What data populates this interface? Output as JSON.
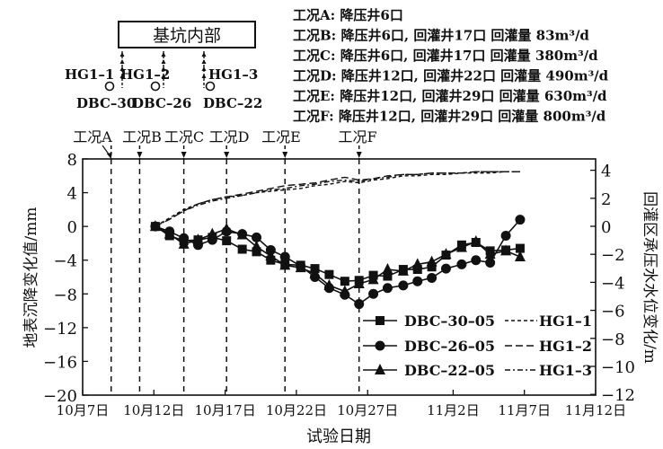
{
  "diagram": {
    "box_label": "基坑内部",
    "wells": [
      {
        "hg": "HG1-1",
        "dbc": "DBC-30"
      },
      {
        "hg": "HG1-2",
        "dbc": "DBC-26"
      },
      {
        "hg": "HG1-3",
        "dbc": "DBC-22"
      }
    ]
  },
  "conditions_legend": [
    "工况A: 降压井6口",
    "工况B: 降压井6口, 回灌井17口 回灌量 83m³/d",
    "工况C: 降压井6口, 回灌井17口 回灌量 380m³/d",
    "工况D: 降压井12口, 回灌井22口 回灌量 490m³/d",
    "工况E: 降压井12口, 回灌井29口 回灌量 630m³/d",
    "工况F: 降压井12口, 回灌井29口 回灌量 800m³/d"
  ],
  "chart_data": {
    "type": "line",
    "title": "",
    "xlabel": "试验日期",
    "ylabel": "地表沉降变化值/mm",
    "y2label": "回灌区承压水水位变化/m",
    "x_ticks": [
      "10月7日",
      "10月12日",
      "10月17日",
      "10月22日",
      "10月27日",
      "11月2日",
      "11月7日",
      "11月12日"
    ],
    "x_tick_days": [
      0,
      5,
      10,
      15,
      20,
      26,
      31,
      36
    ],
    "ylim": [
      -20,
      8
    ],
    "yticks": [
      8,
      4,
      0,
      -4,
      -8,
      -12,
      -16,
      -20
    ],
    "y2lim": [
      -12,
      4
    ],
    "y2ticks": [
      4,
      2,
      0,
      -2,
      -4,
      -6,
      -8,
      -10,
      -12
    ],
    "grid": false,
    "legend_position": "lower right",
    "conditions": [
      {
        "label": "工况A",
        "day": 2.0
      },
      {
        "label": "工况B",
        "day": 4.0
      },
      {
        "label": "工况C",
        "day": 7.1
      },
      {
        "label": "工况D",
        "day": 10.1
      },
      {
        "label": "工况E",
        "day": 14.2
      },
      {
        "label": "工况F",
        "day": 19.4
      }
    ],
    "x_days": [
      5.1,
      6.1,
      7.1,
      8.1,
      9.1,
      10.1,
      11.2,
      12.2,
      13.2,
      14.2,
      15.3,
      16.3,
      17.3,
      18.4,
      19.4,
      20.4,
      21.4,
      22.5,
      23.5,
      24.5,
      25.5,
      26.6,
      27.6,
      28.6,
      29.7,
      30.7
    ],
    "series": [
      {
        "name": "DBC-30-05",
        "axis": "left",
        "marker": "square",
        "values": [
          0.0,
          -1.1,
          -1.7,
          -1.6,
          -1.3,
          -1.7,
          -2.7,
          -3.0,
          -4.0,
          -4.5,
          -4.6,
          -5.0,
          -5.7,
          -6.5,
          -6.4,
          -5.8,
          -5.9,
          -5.1,
          -5.1,
          -4.8,
          -3.4,
          -2.2,
          -1.9,
          -2.9,
          -2.8,
          -2.6
        ]
      },
      {
        "name": "DBC-26-05",
        "axis": "left",
        "marker": "circle",
        "values": [
          0.0,
          -0.6,
          -1.4,
          -2.2,
          -1.6,
          -0.6,
          -0.9,
          -1.3,
          -2.8,
          -3.6,
          -4.7,
          -6.0,
          -7.3,
          -8.1,
          -9.2,
          -8.0,
          -7.3,
          -7.0,
          -6.5,
          -6.1,
          -5.0,
          -4.5,
          -4.0,
          -4.3,
          -1.1,
          0.8
        ]
      },
      {
        "name": "DBC-22-05",
        "axis": "left",
        "marker": "triangle",
        "values": [
          0.0,
          -0.9,
          -2.1,
          -1.6,
          -0.9,
          -0.3,
          -1.0,
          -2.4,
          -3.5,
          -4.6,
          -4.9,
          -5.6,
          -7.0,
          -7.7,
          -6.8,
          -6.3,
          -5.1,
          -5.3,
          -4.5,
          -4.2,
          -3.3,
          -2.5,
          -1.8,
          -3.3,
          -2.9,
          -3.6
        ]
      },
      {
        "name": "HG1-1",
        "axis": "right",
        "style": "dashed",
        "values": [
          0.0,
          0.6,
          1.2,
          1.6,
          1.9,
          2.1,
          2.2,
          2.4,
          2.5,
          2.6,
          2.7,
          2.9,
          3.0,
          3.2,
          3.1,
          3.3,
          3.4,
          3.6,
          3.6,
          3.7,
          3.7,
          3.8,
          3.8,
          3.8,
          3.9,
          3.9
        ]
      },
      {
        "name": "HG1-2",
        "axis": "right",
        "style": "long-dash",
        "values": [
          0.0,
          0.5,
          1.1,
          1.6,
          1.9,
          2.1,
          2.3,
          2.5,
          2.7,
          2.9,
          3.0,
          3.1,
          3.3,
          3.5,
          3.3,
          3.4,
          3.6,
          3.7,
          3.7,
          3.8,
          3.8,
          3.8,
          3.9,
          3.9,
          3.9,
          3.9
        ]
      },
      {
        "name": "HG1-3",
        "axis": "right",
        "style": "dash-dot",
        "values": [
          0.0,
          0.5,
          1.1,
          1.5,
          1.8,
          2.0,
          2.2,
          2.4,
          2.6,
          2.7,
          2.9,
          3.0,
          3.2,
          3.3,
          3.2,
          3.4,
          3.5,
          3.7,
          3.7,
          3.8,
          3.8,
          3.8,
          3.9,
          3.9,
          3.9,
          3.9
        ]
      }
    ]
  }
}
